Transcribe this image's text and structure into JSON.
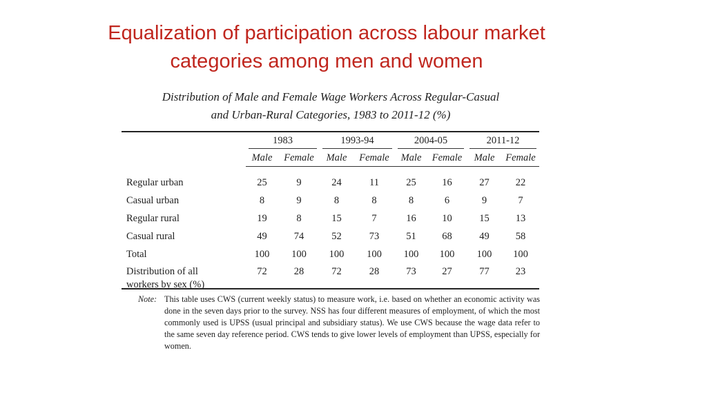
{
  "slide": {
    "title_line1": "Equalization of participation across labour market",
    "title_line2": "categories among men and women"
  },
  "table": {
    "caption_line1": "Distribution of Male and Female Wage Workers Across Regular-Casual",
    "caption_line2": "and Urban-Rural Categories, 1983 to 2011-12 (%)",
    "years": [
      "1983",
      "1993-94",
      "2004-05",
      "2011-12"
    ],
    "sexes": [
      "Male",
      "Female",
      "Male",
      "Female",
      "Male",
      "Female",
      "Male",
      "Female"
    ],
    "rows": [
      {
        "label": "Regular urban",
        "values": [
          "25",
          "9",
          "24",
          "11",
          "25",
          "16",
          "27",
          "22"
        ]
      },
      {
        "label": "Casual urban",
        "values": [
          "8",
          "9",
          "8",
          "8",
          "8",
          "6",
          "9",
          "7"
        ]
      },
      {
        "label": "Regular rural",
        "values": [
          "19",
          "8",
          "15",
          "7",
          "16",
          "10",
          "15",
          "13"
        ]
      },
      {
        "label": "Casual rural",
        "values": [
          "49",
          "74",
          "52",
          "73",
          "51",
          "68",
          "49",
          "58"
        ]
      },
      {
        "label": "Total",
        "values": [
          "100",
          "100",
          "100",
          "100",
          "100",
          "100",
          "100",
          "100"
        ]
      }
    ],
    "dist_row": {
      "label_line1": "Distribution of all",
      "label_line2": "workers by sex (%)",
      "values": [
        "72",
        "28",
        "72",
        "28",
        "73",
        "27",
        "77",
        "23"
      ]
    },
    "note_label": "Note:",
    "note_text": "This table uses CWS (current weekly status) to measure work, i.e. based on whether an economic activity was done in the seven days prior to the survey. NSS has four different measures of employment, of which the most commonly used is UPSS (usual principal and subsidiary status). We use CWS because the wage data refer to the same seven day reference period. CWS tends to give lower levels of employment than UPSS, especially for women."
  }
}
